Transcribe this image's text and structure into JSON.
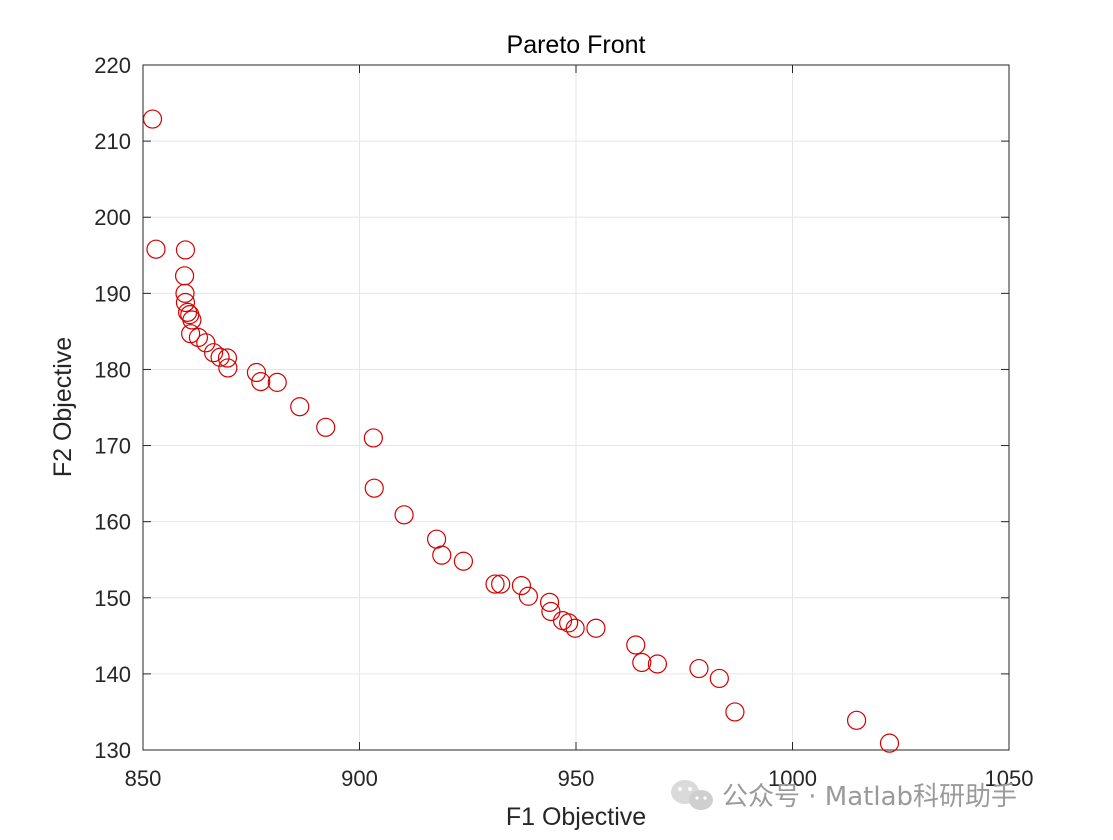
{
  "chart_data": {
    "type": "scatter",
    "title": "Pareto Front",
    "xlabel": "F1 Objective",
    "ylabel": "F2 Objective",
    "xlim": [
      850,
      1050
    ],
    "ylim": [
      130,
      220
    ],
    "xticks": [
      850,
      900,
      950,
      1000,
      1050
    ],
    "yticks": [
      130,
      140,
      150,
      160,
      170,
      180,
      190,
      200,
      210,
      220
    ],
    "grid": true,
    "marker": "open-circle",
    "marker_color": "#d40000",
    "series": [
      {
        "x": [
          852.2,
          853.0,
          859.8,
          859.6,
          859.7,
          859.8,
          860.3,
          860.8,
          861.3,
          861.0,
          862.8,
          864.5,
          866.3,
          867.8,
          869.5,
          869.6,
          876.2,
          877.2,
          881.0,
          886.2,
          892.2,
          903.2,
          903.4,
          910.3,
          917.8,
          919.0,
          924.0,
          931.3,
          932.6,
          937.4,
          939.0,
          943.9,
          944.2,
          946.9,
          948.3,
          949.8,
          954.6,
          963.8,
          965.2,
          968.8,
          978.4,
          983.1,
          986.7,
          1014.8,
          1022.4
        ],
        "y": [
          212.9,
          195.8,
          195.7,
          192.3,
          190.0,
          188.8,
          187.5,
          187.2,
          186.5,
          184.7,
          184.2,
          183.5,
          182.2,
          181.6,
          181.5,
          180.2,
          179.6,
          178.4,
          178.3,
          175.1,
          172.4,
          171.0,
          164.4,
          160.9,
          157.7,
          155.6,
          154.8,
          151.8,
          151.8,
          151.6,
          150.2,
          149.4,
          148.2,
          147.0,
          146.7,
          146.0,
          146.0,
          143.8,
          141.5,
          141.3,
          140.7,
          139.4,
          135.0,
          133.9,
          130.9
        ]
      }
    ]
  },
  "watermark": {
    "text": "公众号 · Matlab科研助手",
    "icon": "wechat-icon"
  }
}
